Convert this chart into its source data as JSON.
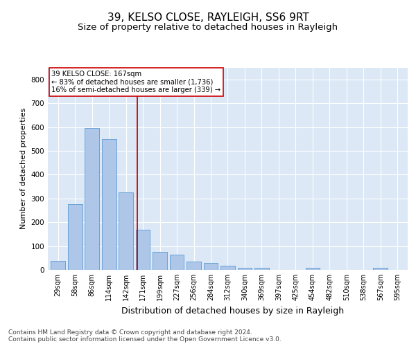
{
  "title1": "39, KELSO CLOSE, RAYLEIGH, SS6 9RT",
  "title2": "Size of property relative to detached houses in Rayleigh",
  "xlabel": "Distribution of detached houses by size in Rayleigh",
  "ylabel": "Number of detached properties",
  "categories": [
    "29sqm",
    "58sqm",
    "86sqm",
    "114sqm",
    "142sqm",
    "171sqm",
    "199sqm",
    "227sqm",
    "256sqm",
    "284sqm",
    "312sqm",
    "340sqm",
    "369sqm",
    "397sqm",
    "425sqm",
    "454sqm",
    "482sqm",
    "510sqm",
    "538sqm",
    "567sqm",
    "595sqm"
  ],
  "values": [
    38,
    275,
    595,
    550,
    325,
    170,
    75,
    65,
    35,
    30,
    18,
    10,
    10,
    0,
    0,
    8,
    0,
    0,
    0,
    8,
    0
  ],
  "bar_color": "#aec6e8",
  "bar_edge_color": "#5b9bd5",
  "vline_color": "#cc0000",
  "vline_x_index": 4.67,
  "annotation_text": "39 KELSO CLOSE: 167sqm\n← 83% of detached houses are smaller (1,736)\n16% of semi-detached houses are larger (339) →",
  "annotation_box_color": "#ffffff",
  "annotation_box_edge": "#cc0000",
  "ylim": [
    0,
    850
  ],
  "yticks": [
    0,
    100,
    200,
    300,
    400,
    500,
    600,
    700,
    800
  ],
  "bg_color": "#dce8f5",
  "fig_bg": "#ffffff",
  "footer": "Contains HM Land Registry data © Crown copyright and database right 2024.\nContains public sector information licensed under the Open Government Licence v3.0.",
  "title1_fontsize": 11,
  "title2_fontsize": 9.5,
  "xlabel_fontsize": 9,
  "ylabel_fontsize": 8,
  "footer_fontsize": 6.5,
  "tick_fontsize": 7,
  "ytick_fontsize": 7.5
}
